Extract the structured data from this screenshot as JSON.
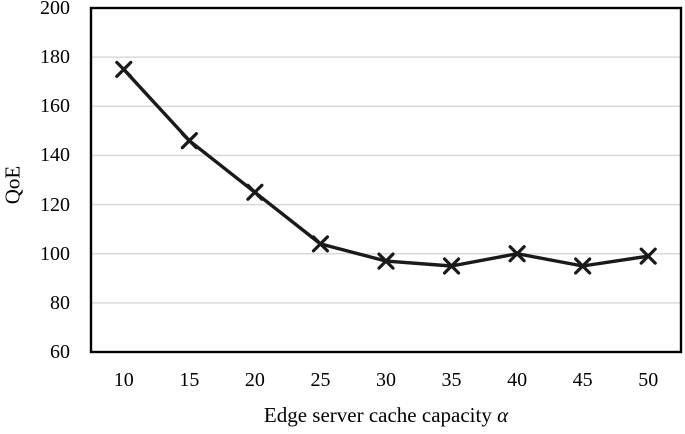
{
  "chart_data": {
    "type": "line",
    "categories": [
      "10",
      "15",
      "20",
      "25",
      "30",
      "35",
      "40",
      "45",
      "50"
    ],
    "series": [
      {
        "name": "QoE",
        "values": [
          175,
          146,
          125,
          104,
          97,
          95,
          100,
          95,
          99
        ]
      }
    ],
    "title": "",
    "xlabel": "Edge server cache capacity",
    "xlabel_symbol": "α",
    "ylabel": "QoE",
    "ylim": [
      60,
      200
    ],
    "yticks": [
      60,
      80,
      100,
      120,
      140,
      160,
      180,
      200
    ],
    "grid": "horizontal",
    "legend": "none",
    "marker": "x",
    "line_color": "#1a1a1a",
    "grid_color": "#d9d9d9",
    "border_color": "#000000",
    "text_color": "#000000"
  }
}
